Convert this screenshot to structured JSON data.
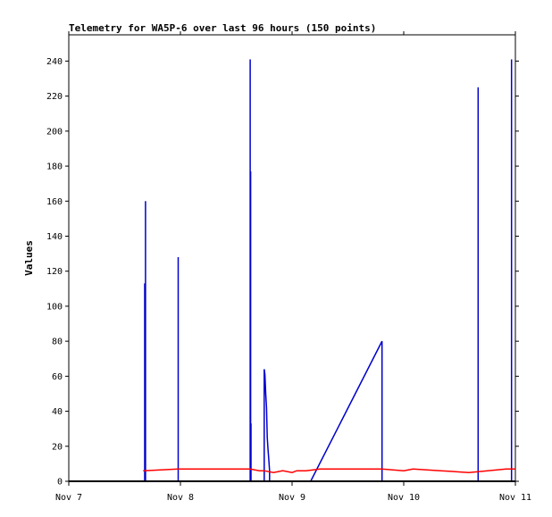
{
  "chart_data": {
    "type": "line",
    "title": "Telemetry for WA5P-6 over last 96 hours (150 points)",
    "xlabel": "",
    "ylabel": "Values",
    "x_ticks": [
      "Nov 7",
      "Nov 8",
      "Nov 9",
      "Nov 10",
      "Nov 11"
    ],
    "x_range": [
      "Nov 7 00:00",
      "Nov 11 00:00"
    ],
    "y_ticks": [
      0,
      20,
      40,
      60,
      80,
      100,
      120,
      140,
      160,
      180,
      200,
      220,
      240
    ],
    "ylim": [
      0,
      255
    ],
    "grid": false,
    "legend": "none",
    "series": [
      {
        "color": "#0000cc",
        "x": [
          "Nov 7 16:19",
          "Nov 7 16:19",
          "Nov 7 16:19",
          "Nov 7 16:29",
          "Nov 7 16:29",
          "Nov 7 16:29",
          "Nov 7 23:31",
          "Nov 7 23:31",
          "Nov 7 23:31",
          "Nov 8 15:00",
          "Nov 8 15:00",
          "Nov 8 15:00",
          "Nov 8 15:05",
          "Nov 8 15:05",
          "Nov 8 15:05",
          "Nov 8 15:10",
          "Nov 8 15:10",
          "Nov 8 15:10",
          "Nov 8 18:00",
          "Nov 8 18:00",
          "Nov 8 18:10",
          "Nov 8 18:20",
          "Nov 8 18:30",
          "Nov 8 18:40",
          "Nov 8 18:50",
          "Nov 8 19:00",
          "Nov 8 19:10",
          "Nov 8 19:10",
          "Nov 9 04:00",
          "Nov 9 19:20",
          "Nov 9 19:20",
          "Nov 10 16:00",
          "Nov 10 16:00",
          "Nov 10 16:00",
          "Nov 10 23:10",
          "Nov 10 23:10",
          "Nov 10 23:10"
        ],
        "y": [
          0,
          113,
          0,
          0,
          160,
          0,
          0,
          128,
          0,
          0,
          241,
          0,
          0,
          177,
          0,
          0,
          33,
          0,
          0,
          64,
          61,
          50,
          42,
          25,
          18,
          12,
          6,
          0,
          0,
          80,
          0,
          0,
          225,
          0,
          0,
          241,
          0
        ]
      },
      {
        "color": "#ff0000",
        "x": [
          "Nov 7 16:00",
          "Nov 7 23:31",
          "Nov 8 15:00",
          "Nov 8 17:00",
          "Nov 8 18:00",
          "Nov 8 20:00",
          "Nov 8 22:00",
          "Nov 9 00:00",
          "Nov 9 01:00",
          "Nov 9 03:00",
          "Nov 9 06:00",
          "Nov 9 12:00",
          "Nov 9 19:20",
          "Nov 10 00:00",
          "Nov 10 02:00",
          "Nov 10 08:00",
          "Nov 10 14:00",
          "Nov 10 18:00",
          "Nov 10 22:00",
          "Nov 11 00:00"
        ],
        "y": [
          6,
          7,
          7,
          6,
          6,
          5,
          6,
          5,
          6,
          6,
          7,
          7,
          7,
          6,
          7,
          6,
          5,
          6,
          7,
          7
        ]
      },
      {
        "color": "#000000",
        "x": [
          "Nov 7 00:00",
          "Nov 11 00:00"
        ],
        "y": [
          0,
          0
        ]
      }
    ]
  }
}
